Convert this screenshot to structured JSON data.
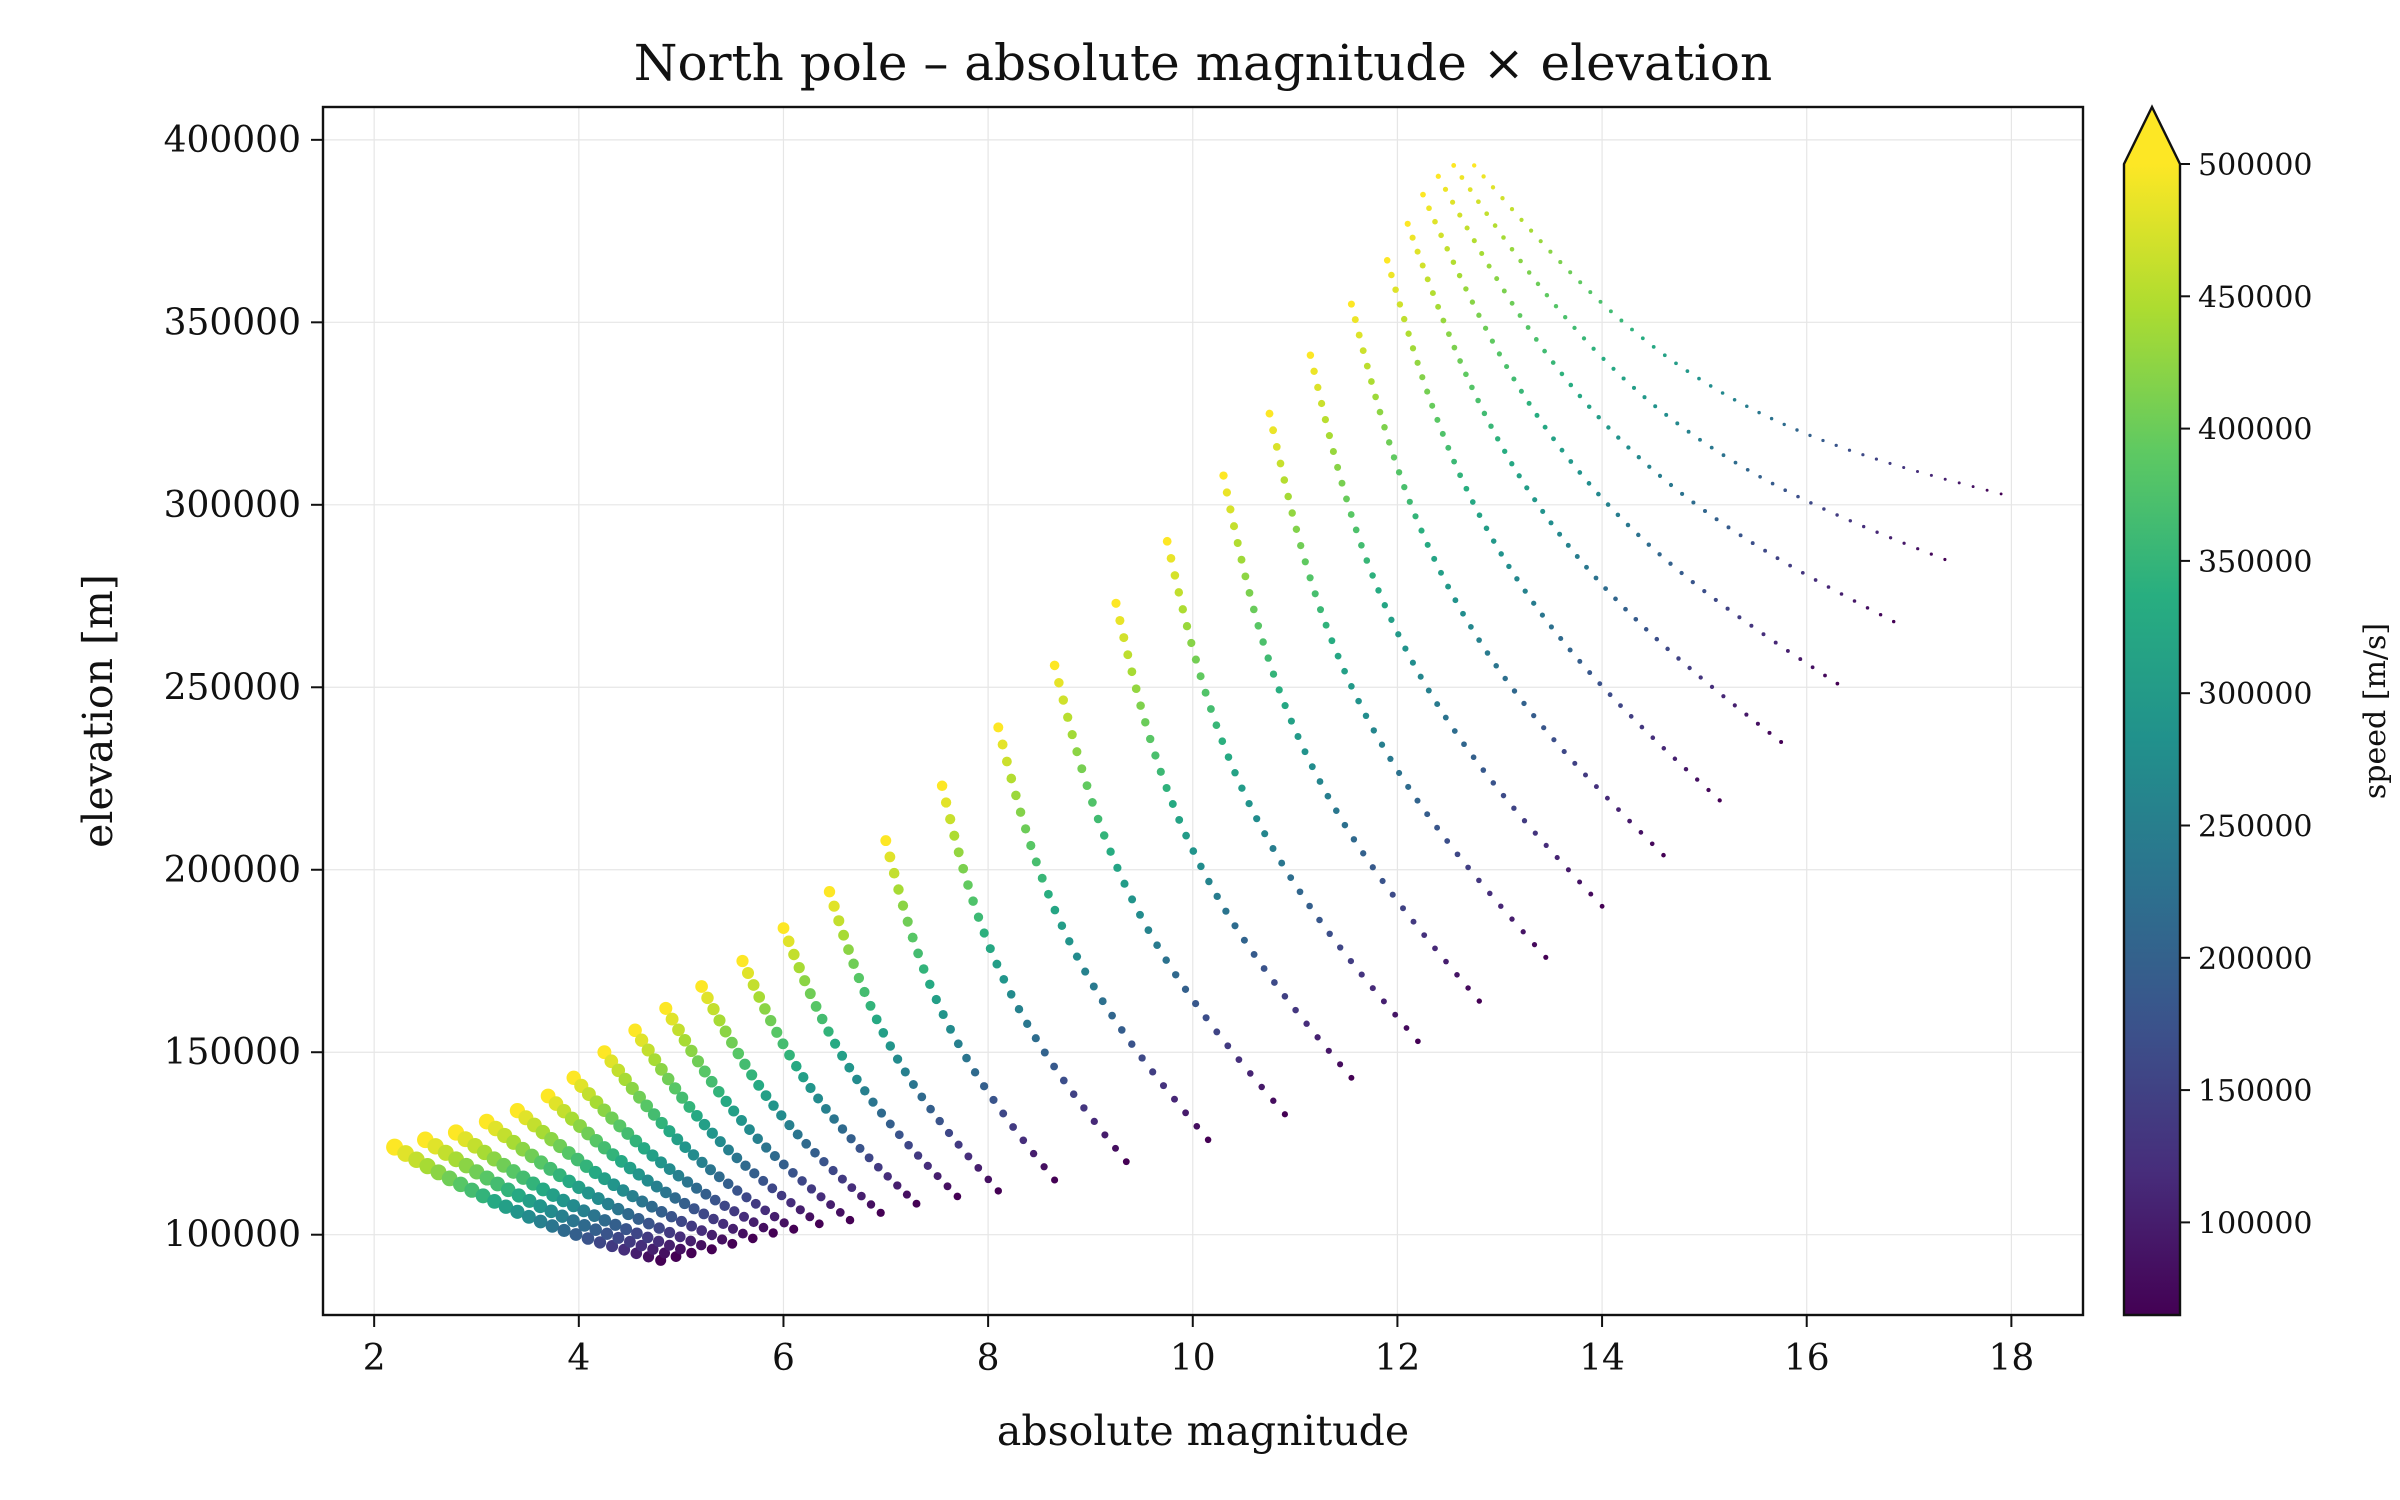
{
  "chart_data": {
    "type": "scatter",
    "title": "North pole – absolute magnitude × elevation",
    "xlabel": "absolute magnitude",
    "ylabel": "elevation [m]",
    "xlim": [
      1.5,
      18.7
    ],
    "ylim": [
      78000,
      409000
    ],
    "xticks": [
      2,
      4,
      6,
      8,
      10,
      12,
      14,
      16,
      18
    ],
    "xtick_labels": [
      "2",
      "4",
      "6",
      "8",
      "10",
      "12",
      "14",
      "16",
      "18"
    ],
    "yticks": [
      100000,
      150000,
      200000,
      250000,
      300000,
      350000,
      400000
    ],
    "ytick_labels": [
      "100000",
      "150000",
      "200000",
      "250000",
      "300000",
      "350000",
      "400000"
    ],
    "grid": true,
    "colormap": "viridis",
    "colorbar": {
      "label": "speed [m/s]",
      "range": [
        65000,
        500000
      ],
      "extend": "max",
      "ticks": [
        100000,
        150000,
        200000,
        250000,
        300000,
        350000,
        400000,
        450000,
        500000
      ],
      "tick_labels": [
        "100000",
        "150000",
        "200000",
        "250000",
        "300000",
        "350000",
        "400000",
        "450000",
        "500000"
      ]
    },
    "trajectories": [
      {
        "start": [
          2.2,
          124000
        ],
        "end": [
          4.8,
          93000
        ],
        "points": 24
      },
      {
        "start": [
          2.5,
          126000
        ],
        "end": [
          4.95,
          94000
        ],
        "points": 24
      },
      {
        "start": [
          2.8,
          128000
        ],
        "end": [
          5.1,
          95000
        ],
        "points": 24
      },
      {
        "start": [
          3.1,
          131000
        ],
        "end": [
          5.3,
          96000
        ],
        "points": 24
      },
      {
        "start": [
          3.4,
          134000
        ],
        "end": [
          5.5,
          97500
        ],
        "points": 24
      },
      {
        "start": [
          3.7,
          138000
        ],
        "end": [
          5.7,
          99000
        ],
        "points": 24
      },
      {
        "start": [
          3.95,
          143000
        ],
        "end": [
          5.9,
          100500
        ],
        "points": 24
      },
      {
        "start": [
          4.25,
          150000
        ],
        "end": [
          6.1,
          101500
        ],
        "points": 24
      },
      {
        "start": [
          4.55,
          156000
        ],
        "end": [
          6.35,
          103000
        ],
        "points": 24
      },
      {
        "start": [
          4.85,
          162000
        ],
        "end": [
          6.65,
          104000
        ],
        "points": 24
      },
      {
        "start": [
          5.2,
          168000
        ],
        "end": [
          6.95,
          106000
        ],
        "points": 24
      },
      {
        "start": [
          5.6,
          175000
        ],
        "end": [
          7.3,
          108500
        ],
        "points": 24
      },
      {
        "start": [
          6.0,
          184000
        ],
        "end": [
          7.7,
          110500
        ],
        "points": 24
      },
      {
        "start": [
          6.45,
          194000
        ],
        "end": [
          8.1,
          112000
        ],
        "points": 24
      },
      {
        "start": [
          7.0,
          208000
        ],
        "end": [
          8.65,
          115000
        ],
        "points": 24
      },
      {
        "start": [
          7.55,
          223000
        ],
        "end": [
          9.35,
          120000
        ],
        "points": 26
      },
      {
        "start": [
          8.1,
          239000
        ],
        "end": [
          10.15,
          126000
        ],
        "points": 28
      },
      {
        "start": [
          8.65,
          256000
        ],
        "end": [
          10.9,
          133000
        ],
        "points": 30
      },
      {
        "start": [
          9.25,
          273000
        ],
        "end": [
          11.55,
          143000
        ],
        "points": 32
      },
      {
        "start": [
          9.75,
          290000
        ],
        "end": [
          12.2,
          153000
        ],
        "points": 34
      },
      {
        "start": [
          10.3,
          308000
        ],
        "end": [
          12.8,
          164000
        ],
        "points": 36
      },
      {
        "start": [
          10.75,
          325000
        ],
        "end": [
          13.45,
          176000
        ],
        "points": 38
      },
      {
        "start": [
          11.15,
          341000
        ],
        "end": [
          14.0,
          190000
        ],
        "points": 40
      },
      {
        "start": [
          11.55,
          355000
        ],
        "end": [
          14.6,
          204000
        ],
        "points": 42
      },
      {
        "start": [
          11.9,
          367000
        ],
        "end": [
          15.15,
          219000
        ],
        "points": 44
      },
      {
        "start": [
          12.1,
          377000
        ],
        "end": [
          15.75,
          235000
        ],
        "points": 46
      },
      {
        "start": [
          12.25,
          385000
        ],
        "end": [
          16.3,
          251000
        ],
        "points": 46
      },
      {
        "start": [
          12.4,
          390000
        ],
        "end": [
          16.85,
          268000
        ],
        "points": 46
      },
      {
        "start": [
          12.55,
          393000
        ],
        "end": [
          17.35,
          285000
        ],
        "points": 46
      },
      {
        "start": [
          12.75,
          393000
        ],
        "end": [
          17.9,
          303000
        ],
        "points": 46
      }
    ]
  }
}
